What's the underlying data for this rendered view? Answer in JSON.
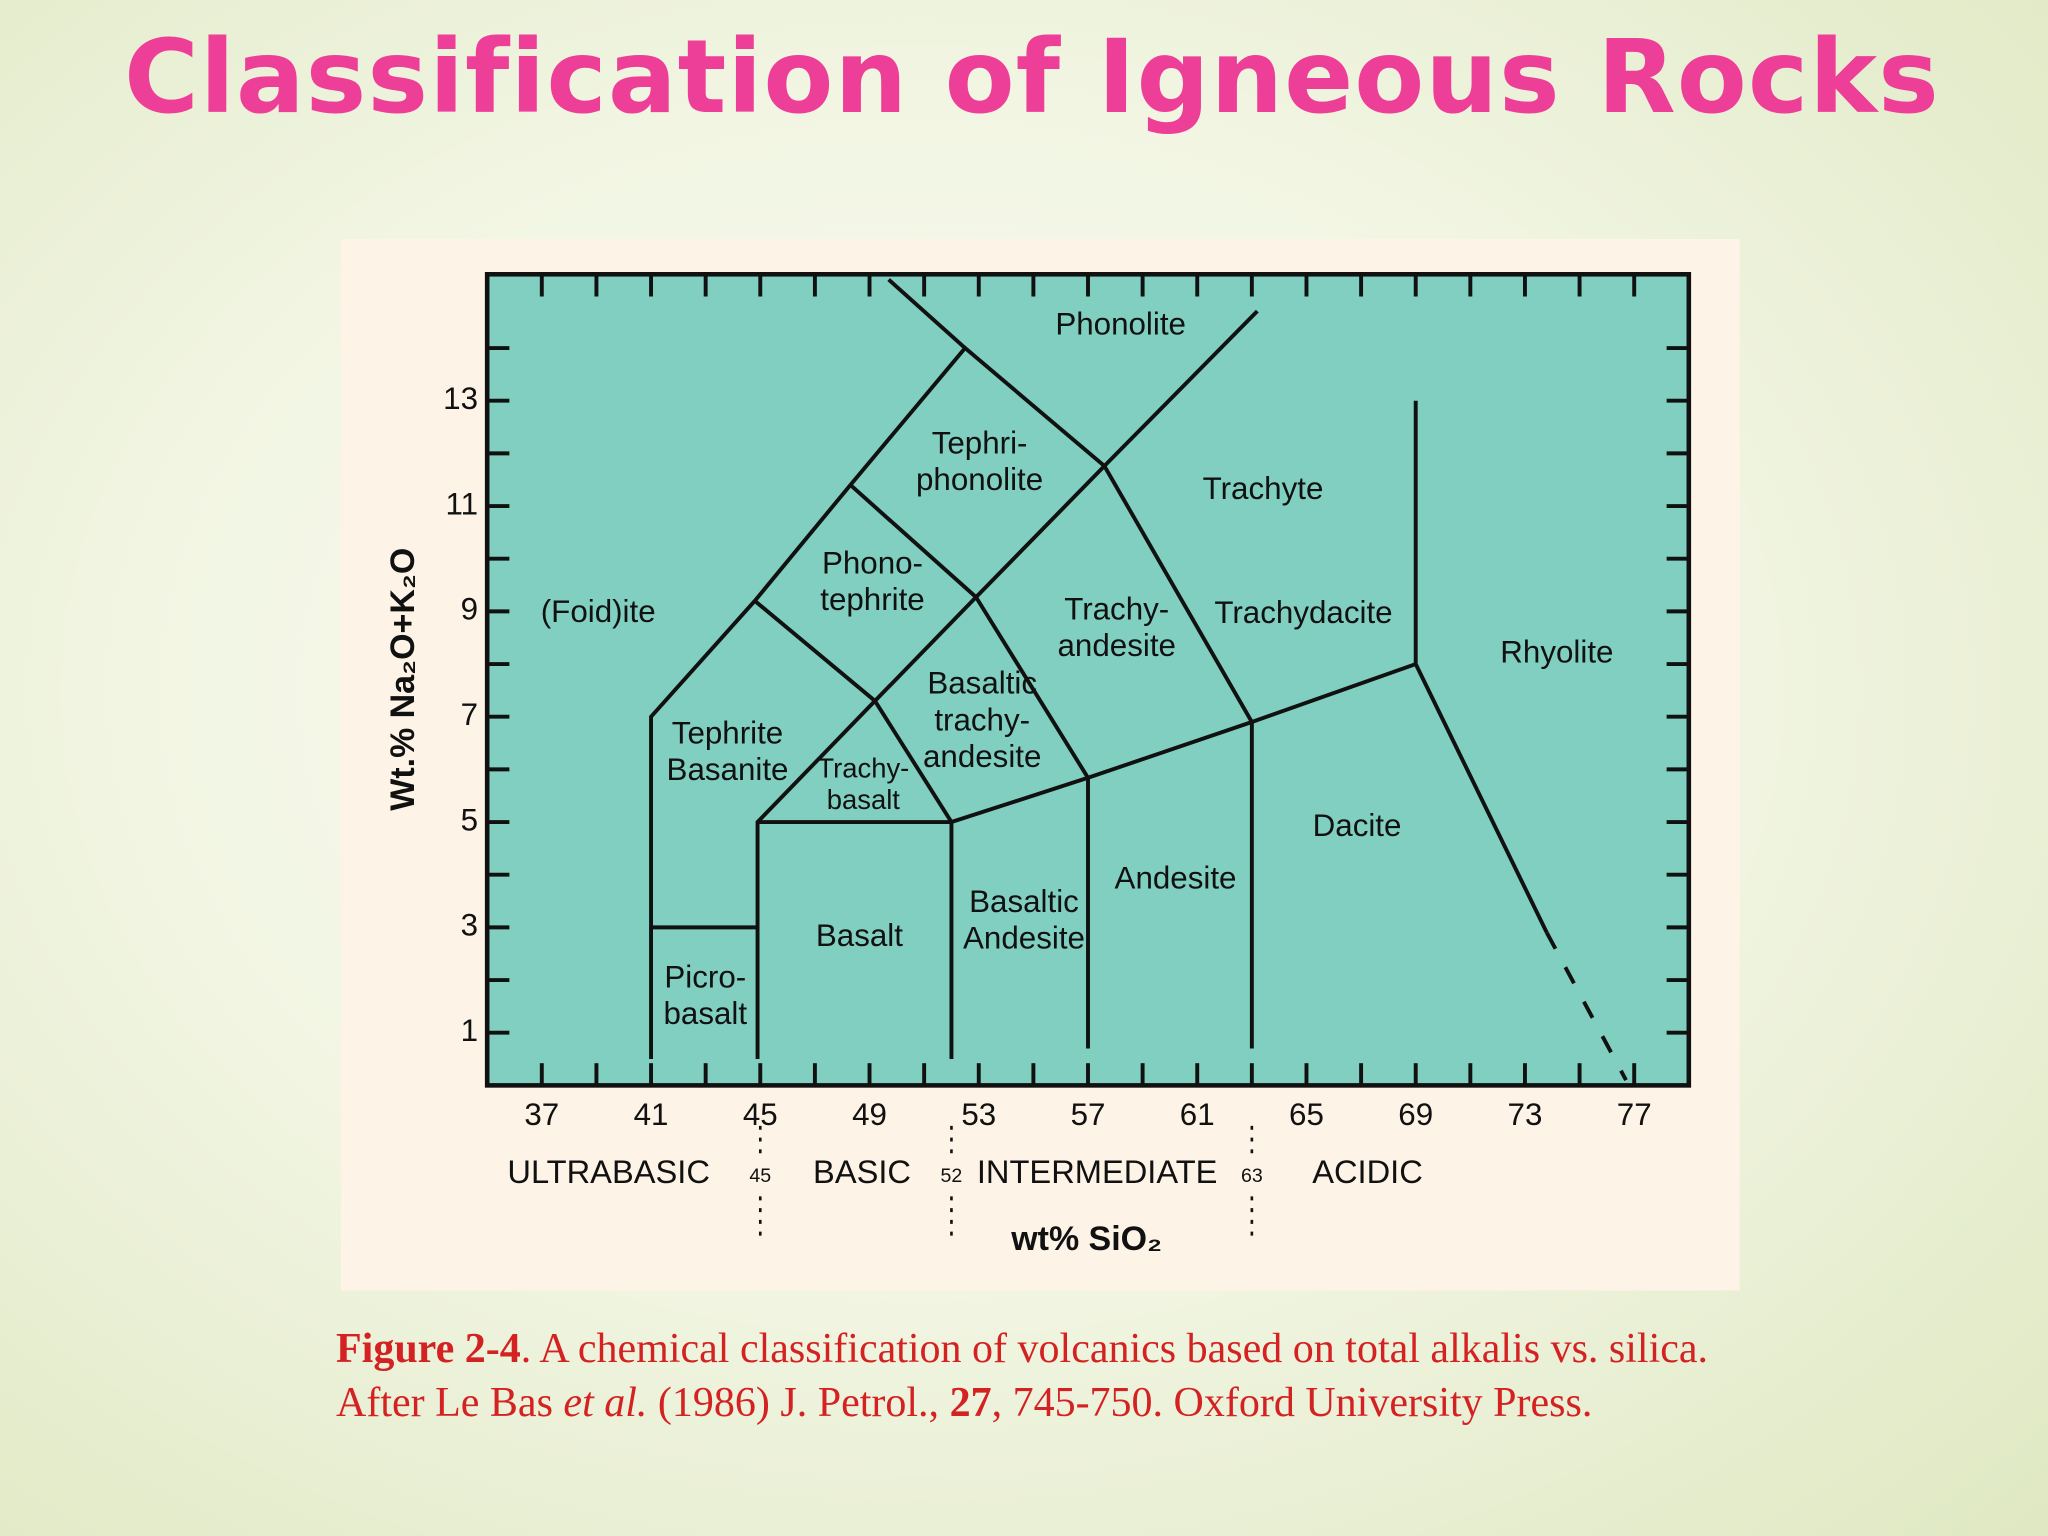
{
  "title": "Classification of Igneous Rocks",
  "chart_data": {
    "type": "region",
    "xlabel": "wt% SiO₂",
    "ylabel": "Wt.% Na₂O+K₂O",
    "xlim": [
      35,
      79
    ],
    "ylim": [
      0,
      15.4
    ],
    "xticks": [
      37,
      41,
      45,
      49,
      53,
      57,
      61,
      65,
      69,
      73,
      77
    ],
    "yticks": [
      1,
      3,
      5,
      7,
      9,
      11,
      13
    ],
    "xticks_minor": [
      39,
      43,
      47,
      51,
      55,
      59,
      63,
      67,
      71,
      75
    ],
    "yticks_minor": [
      2,
      4,
      6,
      8,
      10,
      12,
      14
    ],
    "fill_color": "#80cfc0",
    "lines": [
      {
        "x": [
          41,
          41,
          44.8,
          48.3,
          52.5,
          57.6,
          63.2
        ],
        "y": [
          0.5,
          7,
          9.2,
          11.4,
          14,
          11.76,
          14.7
        ],
        "style": "solid"
      },
      {
        "x": [
          49.7,
          52.5
        ],
        "y": [
          15.3,
          14
        ],
        "style": "solid"
      },
      {
        "x": [
          48.3,
          52.9,
          57.6
        ],
        "y": [
          11.4,
          9.27,
          11.76
        ],
        "style": "solid"
      },
      {
        "x": [
          44.8,
          49.2,
          52.9,
          57,
          57
        ],
        "y": [
          9.2,
          7.3,
          9.27,
          5.84,
          0.7
        ],
        "style": "solid"
      },
      {
        "x": [
          49.2,
          44.9,
          44.9
        ],
        "y": [
          7.3,
          5,
          0.5
        ],
        "style": "solid"
      },
      {
        "x": [
          49.2,
          52,
          52
        ],
        "y": [
          7.3,
          5,
          0.5
        ],
        "style": "solid"
      },
      {
        "x": [
          44.9,
          52,
          57,
          63,
          69
        ],
        "y": [
          5,
          5,
          5.84,
          6.9,
          8
        ],
        "style": "solid"
      },
      {
        "x": [
          57.6,
          63,
          63
        ],
        "y": [
          11.76,
          6.9,
          0.7
        ],
        "style": "solid"
      },
      {
        "x": [
          69,
          69,
          73.8
        ],
        "y": [
          13,
          8,
          2.9
        ],
        "style": "solid"
      },
      {
        "x": [
          73.8,
          76.7
        ],
        "y": [
          2.9,
          0.1
        ],
        "style": "dashed"
      },
      {
        "x": [
          41,
          44.9
        ],
        "y": [
          3,
          3
        ],
        "style": "solid"
      }
    ],
    "regions": [
      [
        "(Foid)ite"
      ],
      [
        "Tephrite",
        "Basanite"
      ],
      [
        "Trachy-",
        "basalt"
      ],
      [
        "Basalt"
      ],
      [
        "Picro-",
        "basalt"
      ],
      [
        "Basaltic",
        "trachy-",
        "andesite"
      ],
      [
        "Basaltic",
        "Andesite"
      ],
      [
        "Andesite"
      ],
      [
        "Trachy-",
        "andesite"
      ],
      [
        "Phono-",
        "tephrite"
      ],
      [
        "Tephri-",
        "phonolite"
      ],
      [
        "Phonolite"
      ],
      [
        "Trachyte"
      ],
      [
        "Trachydacite"
      ],
      [
        "Dacite"
      ],
      [
        "Rhyolite"
      ]
    ],
    "silica_classes": {
      "names": [
        "ULTRABASIC",
        "BASIC",
        "INTERMEDIATE",
        "ACIDIC"
      ],
      "bounds": [
        45,
        52,
        63
      ]
    }
  },
  "caption": [
    "Figure 2-4",
    ". A chemical classification of volcanics based on total alkalis vs. silica. After Le Bas ",
    "et al.",
    " (1986) J. Petrol., ",
    "27",
    ", 745-750. Oxford University Press."
  ]
}
